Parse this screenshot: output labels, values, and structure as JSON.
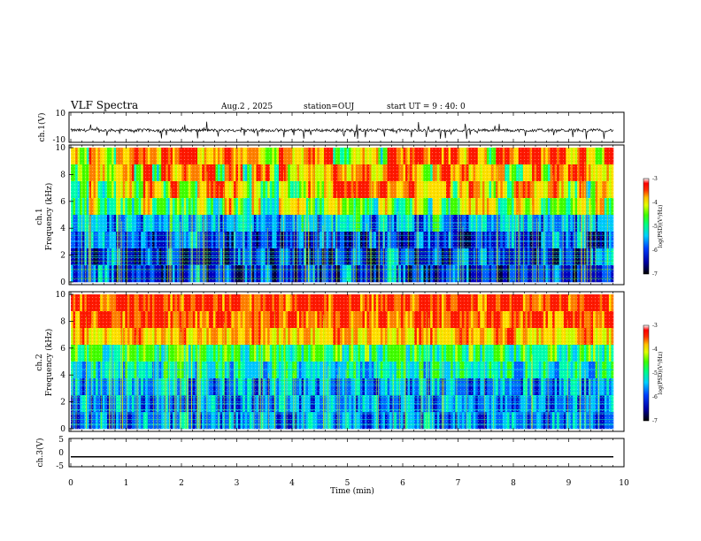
{
  "header": {
    "title": "VLF Spectra",
    "date": "Aug.2 , 2025",
    "station": "station=OUJ",
    "start": "start UT = 9 : 40: 0"
  },
  "colors": {
    "scale": [
      "#000040",
      "#0000c0",
      "#0060ff",
      "#00c8ff",
      "#00ffb0",
      "#40ff00",
      "#c8ff00",
      "#ffe000",
      "#ff8000",
      "#ff1800"
    ]
  },
  "chart_data": [
    {
      "type": "line",
      "panel": "ch1-waveform",
      "ylabel": "ch.1(V)",
      "ylim": [
        -10,
        10
      ],
      "ytick_labels": [
        "10",
        "-10"
      ],
      "baseline": -2,
      "noise_amplitude": 2,
      "spike_depth": 6
    },
    {
      "type": "heatmap",
      "panel": "ch1-spectrogram",
      "ylabel_top": "ch.1",
      "ylabel": "Frequency (kHz)",
      "xlim": [
        0,
        9.8
      ],
      "ylim": [
        0,
        10
      ],
      "ytick_labels": [
        "0",
        "2",
        "4",
        "6",
        "8",
        "10"
      ],
      "colorbar": {
        "label": "log(PSD)(V²/Hz)",
        "range": [
          -7,
          -3
        ],
        "tick_labels": [
          "-3",
          "-4",
          "-5",
          "-6",
          "-7"
        ]
      },
      "rows": [
        [
          "ytf",
          "ytf",
          "yrf",
          "yrf",
          "rry",
          "fyf",
          "yyf",
          "ttr",
          "yyr",
          "yrt",
          "tyy",
          "ygr",
          "ffr",
          "frf",
          "ryr",
          "ytr",
          "ffr",
          "rfr",
          "fyr",
          "ytr"
        ],
        [
          "ttf",
          "yty",
          "ftr",
          "gry",
          "fff",
          "rtf",
          "fgf",
          "ftr",
          "tyf",
          "tyr",
          "yyr",
          "yyr",
          "ffy",
          "tyr",
          "yry",
          "yyf",
          "tgy",
          "rtr",
          "frr",
          "yyy"
        ],
        [
          "gtf",
          "gty",
          "ytf",
          "ytf",
          "tty",
          "rry",
          "fty",
          "tgy",
          "gtf",
          "tyr",
          "ffr",
          "yrf",
          "fry",
          "yyf",
          "tyr",
          "ytf",
          "tfr",
          "yyr",
          "ytf",
          "gfy"
        ],
        [
          "ggy",
          "tgt",
          "gty",
          "tgt",
          "tgy",
          "ggf",
          "tgy",
          "ggy",
          "yyt",
          "gyy",
          "tgt",
          "gyt",
          "gty",
          "gyg",
          "gyy",
          "yyg",
          "tyt",
          "ygt",
          "tty",
          "tyg"
        ],
        [
          "cgc",
          "cbc",
          "cbg",
          "bcg",
          "cbc",
          "cbc",
          "cgb",
          "cbb",
          "bgg",
          "bcc",
          "cgc",
          "bgb",
          "ccb",
          "cgc",
          "bbc",
          "cbc",
          "gcc",
          "bbc",
          "cbc",
          "cbc"
        ],
        [
          "bbc",
          "cbb",
          "bbb",
          "nnb",
          "bcb",
          "bbn",
          "bbn",
          "nbn",
          "nbn",
          "bbb",
          "nbn",
          "bbb",
          "nnb",
          "bnb",
          "nnn",
          "bnn",
          "cbn",
          "nbc",
          "bbc",
          "nnb"
        ],
        [
          "nbn",
          "bcb",
          "nnb",
          "nbb",
          "nbn",
          "nbn",
          "bbn",
          "bnb",
          "nbn",
          "nnb",
          "nbn",
          "nbc",
          "bbn",
          "nbn",
          "bbb",
          "cnn",
          "nbb",
          "nbn",
          "bnn",
          "bbc"
        ],
        [
          "bbb",
          "cbn",
          "nbn",
          "bnb",
          "nbc",
          "nbb",
          "nbn",
          "bnb",
          "nbb",
          "nbn",
          "cnb",
          "nnc",
          "bnb",
          "nnb",
          "bbn",
          "bnn",
          "nnb",
          "bbb",
          "bnb",
          "nnb"
        ]
      ]
    },
    {
      "type": "heatmap",
      "panel": "ch2-spectrogram",
      "ylabel_top": "ch.2",
      "ylabel": "Frequency (kHz)",
      "xlim": [
        0,
        9.8
      ],
      "ylim": [
        0,
        10
      ],
      "ytick_labels": [
        "0",
        "2",
        "4",
        "6",
        "8",
        "10"
      ],
      "colorbar": {
        "label": "log(PSD)(V²/Hz)",
        "range": [
          -7,
          -3
        ],
        "tick_labels": [
          "-3",
          "-4",
          "-5",
          "-6",
          "-7"
        ]
      },
      "rows": [
        [
          "rfr",
          "ffr",
          "rrr",
          "rrf",
          "frr",
          "rfr",
          "rfr",
          "rrf",
          "frr",
          "rfr",
          "rrf",
          "frr",
          "rfr",
          "rrf",
          "frr",
          "frr",
          "rrf",
          "frr",
          "rfr",
          "rrf"
        ],
        [
          "frf",
          "rff",
          "ffr",
          "rff",
          "rff",
          "frf",
          "ffr",
          "frf",
          "rff",
          "ffr",
          "rff",
          "frf",
          "ffr",
          "frf",
          "rff",
          "frf",
          "ffr",
          "rff",
          "frf",
          "ffr"
        ],
        [
          "yfy",
          "yyf",
          "yfy",
          "yyf",
          "fyy",
          "yfy",
          "yyf",
          "fyy",
          "yfy",
          "yyf",
          "fyy",
          "yfy",
          "yyf",
          "fyy",
          "yfy",
          "yyf",
          "fyy",
          "yfy",
          "yyf",
          "fyy"
        ],
        [
          "tgt",
          "ggt",
          "tgt",
          "ggt",
          "tgt",
          "gtt",
          "ggt",
          "tgt",
          "ggt",
          "tgt",
          "gtt",
          "ggt",
          "tgt",
          "ggt",
          "tgt",
          "gtt",
          "ggt",
          "tgt",
          "ggt",
          "tgt"
        ],
        [
          "gcg",
          "cgc",
          "ggc",
          "cgg",
          "gcg",
          "cgc",
          "ggc",
          "cgg",
          "gcg",
          "cgc",
          "ggc",
          "cgg",
          "gcg",
          "cgc",
          "ggc",
          "cgg",
          "gcg",
          "cgc",
          "ggc",
          "cgg"
        ],
        [
          "cbc",
          "bcb",
          "ccb",
          "bcc",
          "cbc",
          "bcb",
          "ccb",
          "bcc",
          "cbc",
          "bcb",
          "ccb",
          "bcc",
          "cbc",
          "bcb",
          "ccb",
          "bcc",
          "cbc",
          "bcb",
          "ccb",
          "bcc"
        ],
        [
          "bcb",
          "bbc",
          "cbb",
          "bcb",
          "bbc",
          "cbb",
          "bcb",
          "bbc",
          "cbb",
          "bcb",
          "bbc",
          "cbb",
          "bcb",
          "bbc",
          "cbb",
          "bcb",
          "bbc",
          "cbb",
          "bcb",
          "bbc"
        ],
        [
          "bcb",
          "cbb",
          "bbc",
          "bcb",
          "cbb",
          "bbc",
          "bcb",
          "cbb",
          "bbc",
          "bcb",
          "cbb",
          "bbc",
          "bcb",
          "cbb",
          "bbc",
          "bcb",
          "cbb",
          "bbc",
          "bcb",
          "cbb"
        ]
      ]
    },
    {
      "type": "line",
      "panel": "ch3-waveform",
      "ylabel": "ch.3(V)",
      "ylim": [
        -5,
        5
      ],
      "ytick_labels": [
        "5",
        "0",
        "-5"
      ],
      "value": -1.5,
      "xlabel": "Time (min)",
      "xlim": [
        0,
        10
      ],
      "x_ticks": [
        0,
        1,
        2,
        3,
        4,
        5,
        6,
        7,
        8,
        9,
        10
      ],
      "x_tick_labels": [
        "0",
        "1",
        "2",
        "3",
        "4",
        "5",
        "6",
        "7",
        "8",
        "9",
        "10"
      ]
    }
  ]
}
